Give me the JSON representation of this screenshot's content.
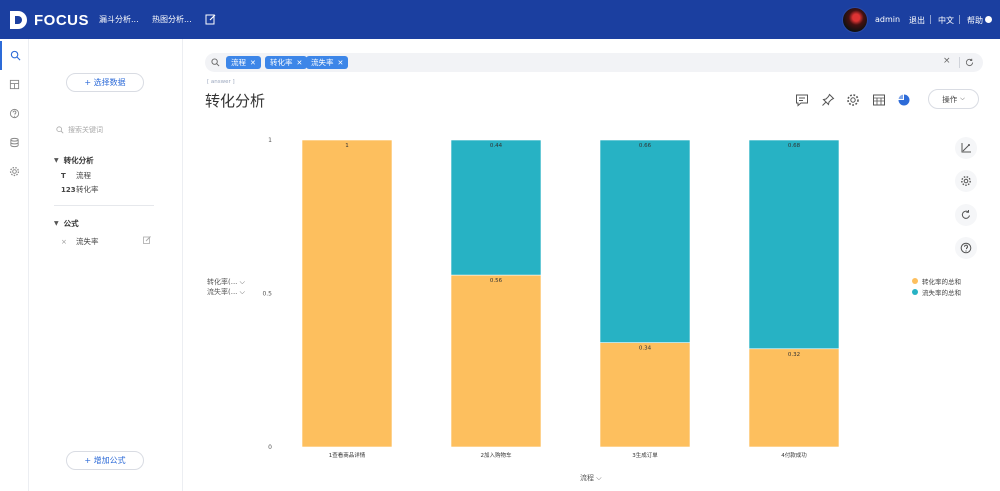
{
  "topbar": {
    "logo_text": "FOCUS",
    "nav": [
      "漏斗分析...",
      "热图分析..."
    ],
    "user": "admin",
    "logout": "退出",
    "language": "中文",
    "help": "帮助"
  },
  "sidebar": {
    "select_data": "+ 选择数据",
    "search_placeholder": "搜索关键词",
    "group1": {
      "title": "转化分析",
      "fields": [
        {
          "type": "T",
          "label": "流程"
        },
        {
          "type": "123",
          "label": "转化率"
        }
      ]
    },
    "group2": {
      "title": "公式",
      "fields": [
        {
          "type": "×",
          "label": "流失率"
        }
      ]
    },
    "add_formula": "+ 增加公式"
  },
  "search": {
    "chips": [
      "流程",
      "转化率",
      "流失率"
    ],
    "clear": "×"
  },
  "main": {
    "answer_tag": "[ answer ]",
    "title": "转化分析",
    "operate": "操作",
    "y_selectors": [
      "转化率(...",
      "流失率(..."
    ],
    "x_selector": "流程"
  },
  "colors": {
    "topbar": "#1b3fa0",
    "accent": "#3d86e8",
    "series_conversion": "#fdbf5e",
    "series_loss": "#27b2c4"
  },
  "chart_data": {
    "type": "bar",
    "stacked": true,
    "categories": [
      "1查看商品详情",
      "2加入购物车",
      "3生成订单",
      "4付款成功"
    ],
    "series": [
      {
        "name": "转化率的总和",
        "values": [
          1,
          0.56,
          0.34,
          0.32
        ],
        "labels": [
          "1",
          "0.56",
          "0.34",
          "0.32"
        ],
        "color": "#fdbf5e"
      },
      {
        "name": "流失率的总和",
        "values": [
          0,
          0.44,
          0.66,
          0.68
        ],
        "labels": [
          "",
          "0.44",
          "0.66",
          "0.68"
        ],
        "color": "#27b2c4"
      }
    ],
    "y_ticks": [
      "1",
      "0.5",
      "0"
    ],
    "ylim": [
      0,
      1
    ],
    "xlabel": "流程",
    "ylabel": "",
    "legend_position": "right",
    "grid": false
  }
}
